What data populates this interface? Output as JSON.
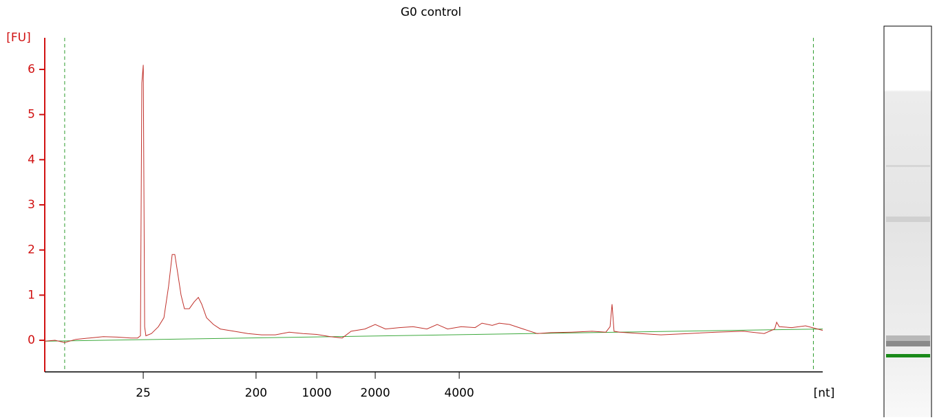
{
  "chart_data": {
    "type": "line",
    "title": "G0 control",
    "y_label": "[FU]",
    "x_label": "[nt]",
    "xlim": [
      19,
      69
    ],
    "ylim": [
      -0.7,
      6.7
    ],
    "yticks": [
      0,
      1,
      2,
      3,
      4,
      5,
      6
    ],
    "xticks": [
      {
        "value": 25.33,
        "label": "25"
      },
      {
        "value": 32.58,
        "label": "200"
      },
      {
        "value": 36.48,
        "label": "1000"
      },
      {
        "value": 40.24,
        "label": "2000"
      },
      {
        "value": 45.64,
        "label": "4000"
      }
    ],
    "axis_color": "#d01010",
    "markers": [
      20.28,
      68.4
    ],
    "marker_color": "#2a9a2a",
    "baseline": {
      "x": [
        19,
        69
      ],
      "values": [
        -0.02,
        0.25
      ],
      "color": "#3aa83a"
    },
    "series": [
      {
        "color": "#c0302a",
        "x": [
          19.0,
          19.66,
          20.28,
          20.99,
          21.88,
          22.76,
          23.65,
          24.53,
          24.97,
          25.15,
          25.24,
          25.33,
          25.42,
          25.5,
          25.86,
          26.3,
          26.66,
          26.96,
          27.19,
          27.36,
          27.54,
          27.76,
          27.98,
          28.29,
          28.6,
          28.87,
          29.09,
          29.4,
          29.84,
          30.28,
          31.17,
          32.05,
          32.94,
          33.82,
          34.71,
          35.59,
          36.48,
          37.36,
          38.12,
          38.69,
          39.58,
          40.24,
          40.9,
          41.79,
          42.67,
          43.56,
          44.22,
          44.89,
          45.77,
          46.66,
          47.1,
          47.76,
          48.21,
          48.87,
          49.75,
          50.64,
          51.52,
          52.85,
          54.18,
          55.06,
          55.33,
          55.46,
          55.59,
          55.95,
          57.28,
          58.6,
          60.37,
          62.14,
          63.91,
          65.24,
          65.91,
          66.04,
          66.21,
          67.01,
          67.9,
          69.0
        ],
        "values": [
          -0.02,
          0,
          -0.05,
          0.02,
          0.05,
          0.08,
          0.07,
          0.05,
          0.05,
          0.1,
          5.7,
          6.1,
          0.3,
          0.1,
          0.15,
          0.3,
          0.5,
          1.2,
          1.9,
          1.9,
          1.5,
          1.0,
          0.7,
          0.7,
          0.85,
          0.95,
          0.8,
          0.5,
          0.35,
          0.25,
          0.2,
          0.15,
          0.12,
          0.12,
          0.18,
          0.15,
          0.13,
          0.08,
          0.05,
          0.2,
          0.25,
          0.35,
          0.25,
          0.28,
          0.3,
          0.25,
          0.35,
          0.25,
          0.3,
          0.28,
          0.38,
          0.33,
          0.38,
          0.35,
          0.25,
          0.15,
          0.17,
          0.18,
          0.2,
          0.18,
          0.3,
          0.8,
          0.2,
          0.18,
          0.15,
          0.12,
          0.15,
          0.18,
          0.2,
          0.15,
          0.25,
          0.4,
          0.3,
          0.28,
          0.32,
          0.22
        ]
      }
    ]
  }
}
